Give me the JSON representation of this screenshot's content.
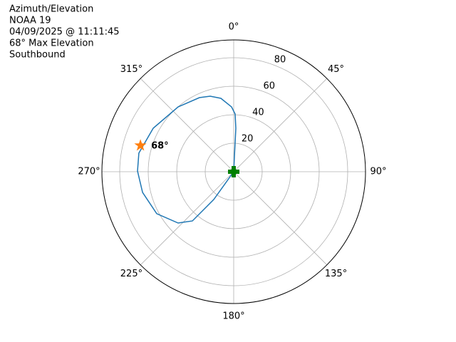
{
  "chart_data": {
    "type": "polar",
    "title": [
      "Azimuth/Elevation",
      "NOAA 19",
      "04/09/2025 @ 11:11:45",
      "68° Max Elevation",
      "Southbound"
    ],
    "direction": "clockwise",
    "zero": "north",
    "grid": true,
    "xlim": [
      0,
      360
    ],
    "xticks": [
      {
        "value": 0,
        "label": "0°"
      },
      {
        "value": 45,
        "label": "45°"
      },
      {
        "value": 90,
        "label": "90°"
      },
      {
        "value": 135,
        "label": "135°"
      },
      {
        "value": 180,
        "label": "180°"
      },
      {
        "value": 225,
        "label": "225°"
      },
      {
        "value": 270,
        "label": "270°"
      },
      {
        "value": 315,
        "label": "315°"
      }
    ],
    "ylim": [
      0,
      92.5
    ],
    "yticks": [
      20,
      40,
      60,
      80
    ],
    "series": [
      {
        "color": "#1f77b4",
        "x": [
          0,
          2.7,
          2.8,
          1.4,
          358.1,
          350.1,
          342.7,
          335.2,
          319.4,
          298.4,
          281.1,
          270.4,
          257.2,
          241.4,
          227.3,
          220.0,
          215.7,
          0
        ],
        "values": [
          0,
          10.5,
          30.5,
          40.5,
          45.5,
          52.3,
          55.5,
          57.3,
          59.9,
          64.2,
          67.8,
          67.5,
          65.6,
          61.5,
          53.1,
          45.1,
          24.0,
          0
        ]
      }
    ],
    "max_marker": {
      "x": 285.7,
      "value": 68,
      "color": "#ff7f0e",
      "label": "68°"
    },
    "start_marker": {
      "x": 0,
      "value": 0,
      "color": "#008000"
    }
  }
}
